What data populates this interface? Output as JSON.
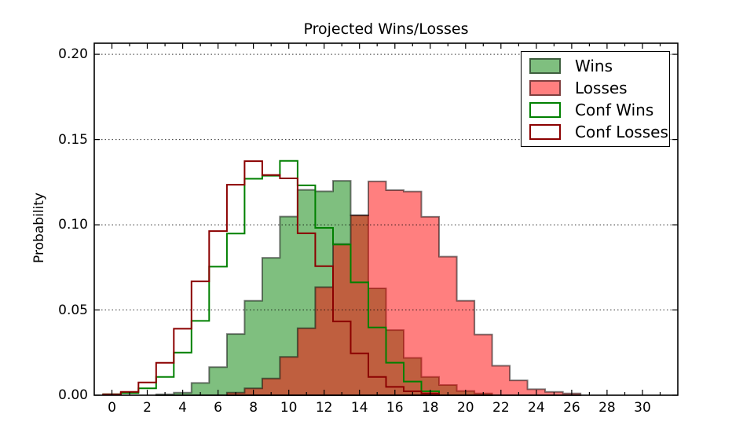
{
  "title": "Projected Wins/Losses",
  "ylabel": "Probability",
  "legend": {
    "position": "upper right",
    "items": [
      {
        "label": "Wins",
        "swatch_fill": "rgba(0,128,0,0.5)",
        "swatch_border": "rgba(0,0,0,0.5)"
      },
      {
        "label": "Losses",
        "swatch_fill": "rgba(255,0,0,0.5)",
        "swatch_border": "rgba(0,0,0,0.5)"
      },
      {
        "label": "Conf Wins",
        "swatch_fill": "#ffffff",
        "swatch_border": "#008000"
      },
      {
        "label": "Conf Losses",
        "swatch_fill": "#ffffff",
        "swatch_border": "#8b0000"
      }
    ]
  },
  "chart_data": {
    "type": "histogram-step",
    "title": "Projected Wins/Losses",
    "xlabel": "",
    "ylabel": "Probability",
    "xlim": [
      -1,
      32
    ],
    "ylim": [
      0,
      0.2065
    ],
    "grid": "horizontal-dotted",
    "x_major_ticks": [
      0,
      2,
      4,
      6,
      8,
      10,
      12,
      14,
      16,
      18,
      20,
      22,
      24,
      26,
      28,
      30
    ],
    "x_minor_tick_step": 1,
    "y_ticks": [
      0.0,
      0.05,
      0.1,
      0.15,
      0.2
    ],
    "y_tick_labels": [
      "0.00",
      "0.05",
      "0.10",
      "0.15",
      "0.20"
    ],
    "bin_width": 1,
    "series": [
      {
        "name": "Wins",
        "style": "filled",
        "fill": "rgba(0,128,0,0.5)",
        "edge": "rgba(0,0,0,0.5)",
        "bin_start": 2.5,
        "values": [
          0.0005,
          0.0015,
          0.0072,
          0.0165,
          0.0359,
          0.0554,
          0.0806,
          0.1048,
          0.1205,
          0.1196,
          0.1258,
          0.1055,
          0.0627,
          0.0382,
          0.0219,
          0.0107,
          0.006,
          0.0025,
          0.001
        ]
      },
      {
        "name": "Losses",
        "style": "filled",
        "fill": "rgba(255,0,0,0.5)",
        "edge": "rgba(0,0,0,0.5)",
        "bin_start": 6.5,
        "values": [
          0.0015,
          0.004,
          0.0098,
          0.0225,
          0.0393,
          0.0634,
          0.0887,
          0.1055,
          0.1254,
          0.1203,
          0.1195,
          0.1047,
          0.0813,
          0.0554,
          0.0356,
          0.0173,
          0.0087,
          0.0035,
          0.002,
          0.001
        ]
      },
      {
        "name": "Conf Wins",
        "style": "step",
        "color": "#008000",
        "bin_start": -0.5,
        "values": [
          0.0006,
          0.0013,
          0.004,
          0.0107,
          0.025,
          0.0436,
          0.0754,
          0.0948,
          0.127,
          0.1288,
          0.1375,
          0.1231,
          0.0982,
          0.0884,
          0.0662,
          0.0398,
          0.0191,
          0.008,
          0.0023
        ]
      },
      {
        "name": "Conf Losses",
        "style": "step",
        "color": "#8b0000",
        "bin_start": -0.5,
        "values": [
          0.0005,
          0.002,
          0.0075,
          0.019,
          0.039,
          0.0668,
          0.0963,
          0.1235,
          0.1373,
          0.1292,
          0.1272,
          0.095,
          0.0757,
          0.0433,
          0.0245,
          0.0107,
          0.0049,
          0.0023,
          0.001
        ]
      }
    ]
  }
}
